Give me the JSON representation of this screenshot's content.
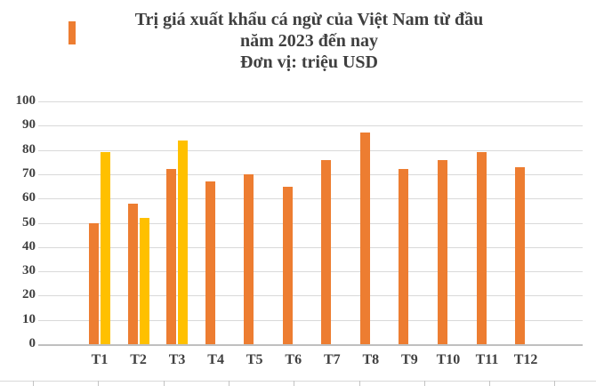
{
  "title": {
    "line1": "Trị giá xuất khẩu cá ngừ của Việt Nam từ đầu",
    "line2": "năm 2023 đến nay",
    "line3": "Đơn vị: triệu USD"
  },
  "colors": {
    "series_orange": "#ED7D31",
    "series_yellow": "#FFC000",
    "gridline": "#D9D9D9",
    "axis_line": "#BFBFBF",
    "text": "#404040",
    "title_marker": "#ED7D31"
  },
  "chart_data": {
    "type": "bar",
    "title": "Trị giá xuất khẩu cá ngừ của Việt Nam từ đầu năm 2023 đến nay",
    "subtitle": "Đơn vị: triệu USD",
    "categories": [
      "T1",
      "T2",
      "T3",
      "T4",
      "T5",
      "T6",
      "T7",
      "T8",
      "T9",
      "T10",
      "T11",
      "T12"
    ],
    "series": [
      {
        "color": "#ED7D31",
        "values": [
          50,
          58,
          72,
          67,
          70,
          65,
          76,
          87,
          72,
          76,
          79,
          73
        ]
      },
      {
        "color": "#FFC000",
        "values": [
          79,
          52,
          84,
          null,
          null,
          null,
          null,
          null,
          null,
          null,
          null,
          null
        ]
      }
    ],
    "ylim": [
      0,
      100
    ],
    "ytick_step": 10,
    "yticks": [
      0,
      10,
      20,
      30,
      40,
      50,
      60,
      70,
      80,
      90,
      100
    ],
    "grid": true,
    "legend": "none"
  }
}
